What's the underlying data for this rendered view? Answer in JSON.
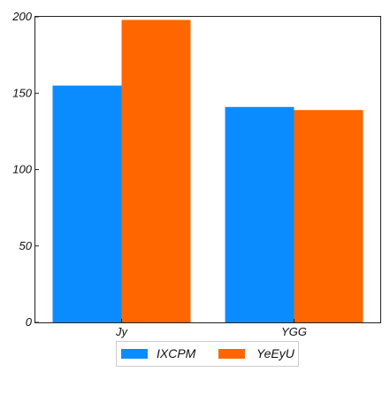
{
  "chart_data": {
    "type": "bar",
    "categories": [
      "Jy",
      "YGG"
    ],
    "series": [
      {
        "name": "IXCPM",
        "values": [
          155,
          141
        ],
        "color": "#0a8cff"
      },
      {
        "name": "YeEyU",
        "values": [
          198,
          139
        ],
        "color": "#ff6600"
      }
    ],
    "title": "",
    "xlabel": "",
    "ylabel": "",
    "ylim": [
      0,
      200
    ],
    "yticks": [
      0,
      50,
      100,
      150,
      200
    ],
    "grid": false,
    "legend_position": "bottom-center"
  }
}
